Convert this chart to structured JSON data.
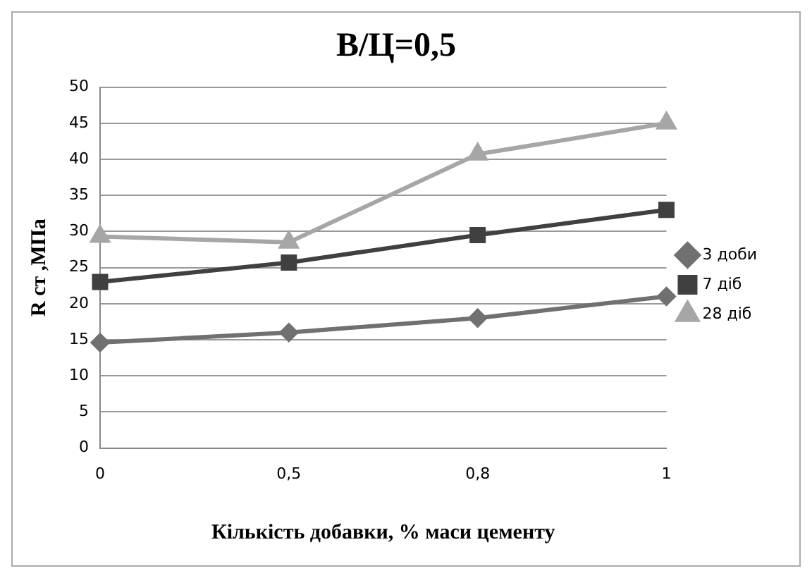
{
  "chart_data": {
    "type": "line",
    "title": "В/Ц=0,5",
    "xlabel": "Кількість добавки, % маси цементу",
    "ylabel": "R ст ,МПа",
    "categories": [
      "0",
      "0,5",
      "0,8",
      "1"
    ],
    "series": [
      {
        "name": "3 доби",
        "color": "#707070",
        "marker": "diamond",
        "values": [
          14.6,
          16,
          18,
          21
        ]
      },
      {
        "name": "7 діб",
        "color": "#404040",
        "marker": "square",
        "values": [
          23,
          25.7,
          29.5,
          33
        ]
      },
      {
        "name": "28 діб",
        "color": "#a6a6a6",
        "marker": "triangle",
        "values": [
          29.3,
          28.5,
          40.7,
          45
        ]
      }
    ],
    "ylim": [
      0,
      50
    ],
    "yticks": [
      0,
      5,
      10,
      15,
      20,
      25,
      30,
      35,
      40,
      45,
      50
    ],
    "grid": "y",
    "legend": "right",
    "line_style": "solid"
  }
}
